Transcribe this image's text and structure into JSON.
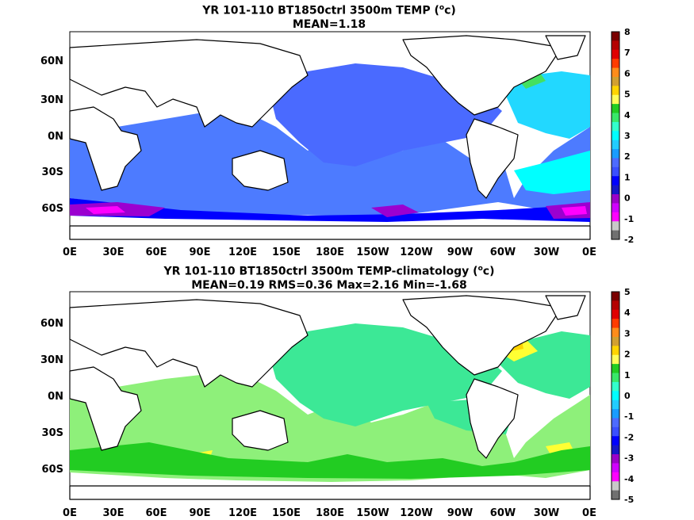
{
  "panels": [
    {
      "title_line1": "YR 101-110 BT1850ctrl 3500m TEMP (",
      "title_unit": "o",
      "title_tail": "c)",
      "title_line2": "MEAN=1.18",
      "lat_labels": [
        "60N",
        "30N",
        "0N",
        "30S",
        "60S"
      ],
      "lon_labels": [
        "0E",
        "30E",
        "60E",
        "90E",
        "120E",
        "150E",
        "180E",
        "150W",
        "120W",
        "90W",
        "60W",
        "30W",
        "0E"
      ],
      "colorbar": {
        "labels": [
          "8",
          "7",
          "6",
          "5",
          "4",
          "3",
          "2",
          "1",
          "0",
          "-1",
          "-2"
        ],
        "colors": [
          "#7a0000",
          "#b40000",
          "#e00000",
          "#ff3c00",
          "#ff8c1a",
          "#d2a030",
          "#ffd400",
          "#ffff5a",
          "#22cc22",
          "#38e86a",
          "#33ffcc",
          "#00ffff",
          "#22ccff",
          "#1a9cff",
          "#4d6bff",
          "#3a4eff",
          "#0000ff",
          "#1616c8",
          "#9b00c8",
          "#d000ff",
          "#ff00ff",
          "#c8c8c8",
          "#707070"
        ]
      }
    },
    {
      "title_line1": "YR 101-110 BT1850ctrl 3500m TEMP-climatology (",
      "title_unit": "o",
      "title_tail": "c)",
      "title_line2": "MEAN=0.19   RMS=0.36   Max=2.16   Min=-1.68",
      "lat_labels": [
        "60N",
        "30N",
        "0N",
        "30S",
        "60S"
      ],
      "lon_labels": [
        "0E",
        "30E",
        "60E",
        "90E",
        "120E",
        "150E",
        "180E",
        "150W",
        "120W",
        "90W",
        "60W",
        "30W",
        "0E"
      ],
      "colorbar": {
        "labels": [
          "5",
          "4",
          "3",
          "2",
          "1",
          "0",
          "-1",
          "-2",
          "-3",
          "-4",
          "-5"
        ],
        "colors": [
          "#7a0000",
          "#b40000",
          "#e00000",
          "#ff3c00",
          "#ff8c1a",
          "#d2a030",
          "#ffd400",
          "#ffff5a",
          "#22cc22",
          "#38e86a",
          "#33ffcc",
          "#00ffff",
          "#22ccff",
          "#1a9cff",
          "#4d6bff",
          "#3a4eff",
          "#0000ff",
          "#1616c8",
          "#9b00c8",
          "#d000ff",
          "#ff00ff",
          "#c8c8c8",
          "#707070"
        ]
      }
    }
  ]
}
